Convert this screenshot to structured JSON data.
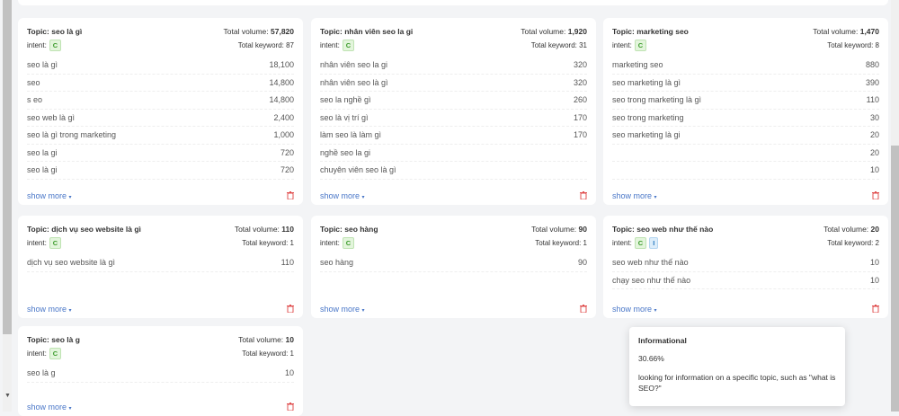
{
  "labels": {
    "topic_prefix": "Topic: ",
    "total_volume": "Total volume: ",
    "total_keyword": "Total keyword: ",
    "intent": "intent:",
    "show_more": "show more"
  },
  "cards": [
    {
      "topic": "seo là gì",
      "volume": "57,820",
      "keywords": "87",
      "intents": [
        "C"
      ],
      "rows": [
        [
          "seo là gì",
          "18,100"
        ],
        [
          "seo",
          "14,800"
        ],
        [
          "s eo",
          "14,800"
        ],
        [
          "seo web là gì",
          "2,400"
        ],
        [
          "seo là gì trong marketing",
          "1,000"
        ],
        [
          "seo la gi",
          "720"
        ],
        [
          "seo là gi",
          "720"
        ]
      ]
    },
    {
      "topic": "nhân viên seo la gi",
      "volume": "1,920",
      "keywords": "31",
      "intents": [
        "C"
      ],
      "rows": [
        [
          "nhân viên seo la gi",
          "320"
        ],
        [
          "nhân viên seo là gì",
          "320"
        ],
        [
          "seo la nghề gì",
          "260"
        ],
        [
          "seo là vị trí gì",
          "170"
        ],
        [
          "làm seo là làm gì",
          "170"
        ],
        [
          "nghề seo la gi",
          ""
        ],
        [
          "chuyên viên seo là gì",
          ""
        ]
      ]
    },
    {
      "topic": "marketing seo",
      "volume": "1,470",
      "keywords": "8",
      "intents": [
        "C"
      ],
      "rows": [
        [
          "marketing seo",
          "880"
        ],
        [
          "seo marketing là gì",
          "390"
        ],
        [
          "seo trong marketing là gì",
          "110"
        ],
        [
          "seo trong marketing",
          "30"
        ],
        [
          "seo marketing là gi",
          "20"
        ],
        [
          "",
          "20"
        ],
        [
          "",
          "10"
        ]
      ]
    },
    {
      "topic": "dịch vụ seo website là gì",
      "volume": "110",
      "keywords": "1",
      "intents": [
        "C"
      ],
      "rows": [
        [
          "dịch vụ seo website là gì",
          "110"
        ]
      ]
    },
    {
      "topic": "seo hàng",
      "volume": "90",
      "keywords": "1",
      "intents": [
        "C"
      ],
      "rows": [
        [
          "seo hàng",
          "90"
        ]
      ]
    },
    {
      "topic": "seo web như thế nào",
      "volume": "20",
      "keywords": "2",
      "intents": [
        "C",
        "I"
      ],
      "rows": [
        [
          "seo web như thế nào",
          "10"
        ],
        [
          "chạy seo như thế nào",
          "10"
        ]
      ]
    },
    {
      "topic": "seo là g",
      "volume": "10",
      "keywords": "1",
      "intents": [
        "C"
      ],
      "rows": [
        [
          "seo là g",
          "10"
        ]
      ]
    }
  ],
  "tooltip": {
    "title": "Informational",
    "percent": "30.66%",
    "description": "looking for information on a specific topic, such as \"what is SEO?\""
  }
}
